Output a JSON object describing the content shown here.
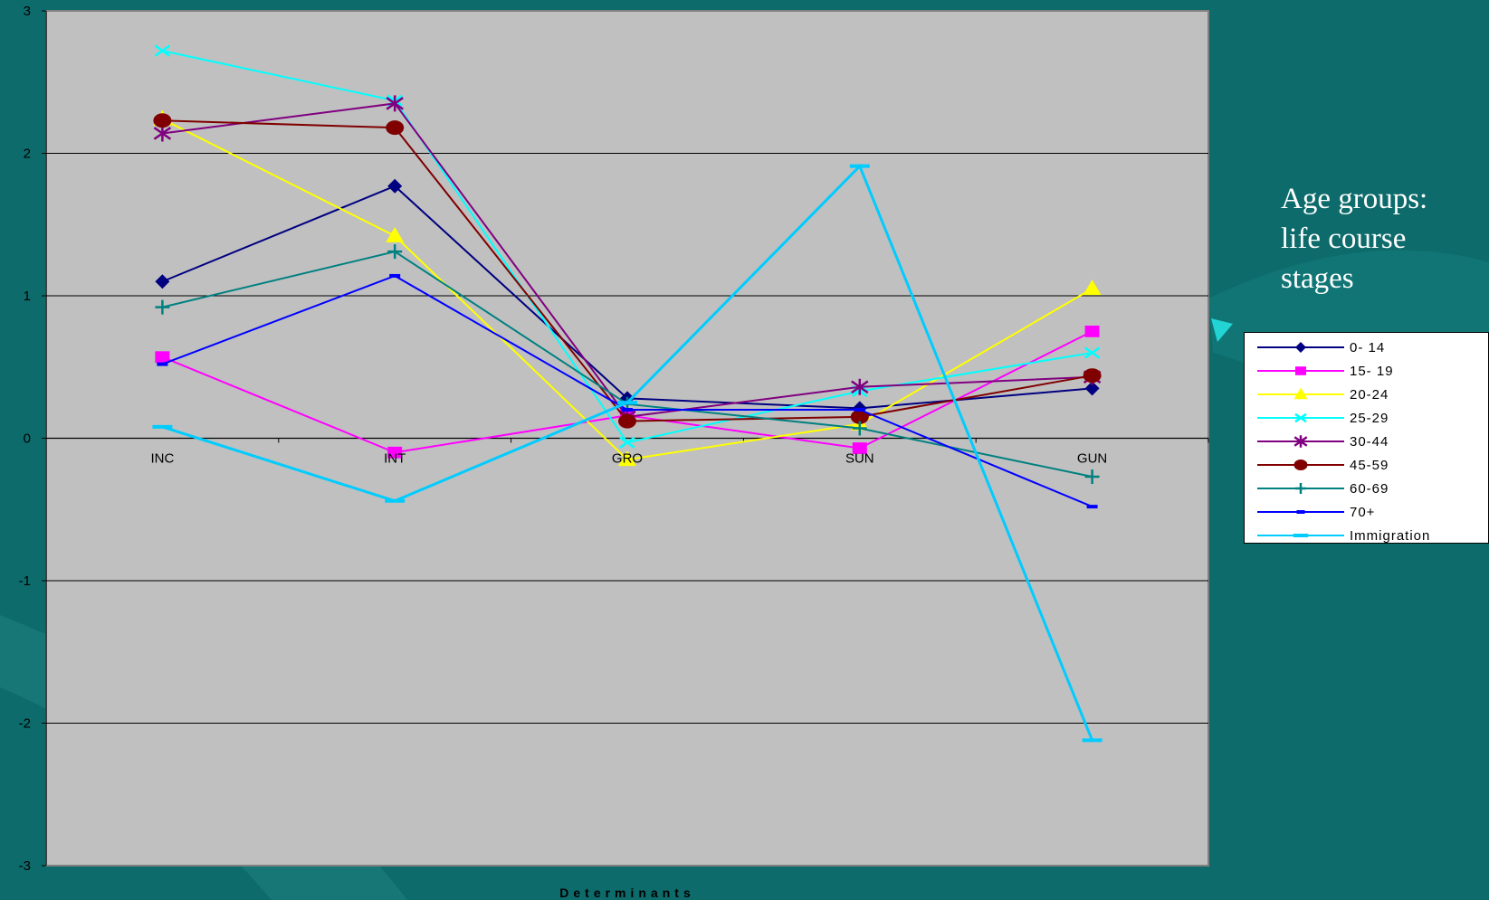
{
  "side_title": "Age groups:\nlife course\nstages",
  "colors": {
    "background": "#0d6b6b",
    "plot_area": "#c0c0c0",
    "gridline": "#000000"
  },
  "chart_data": {
    "type": "line",
    "title": "",
    "xlabel": "Determinants",
    "ylabel": "",
    "categories": [
      "INC",
      "INT",
      "GRO",
      "SUN",
      "GUN"
    ],
    "ylim": [
      -3,
      3
    ],
    "yticks": [
      -3,
      -2,
      -1,
      0,
      1,
      2,
      3
    ],
    "ytick_labels": [
      "-3",
      "-2",
      "-1",
      "0",
      "1",
      "2",
      "3"
    ],
    "grid": true,
    "legend_position": "right",
    "series": [
      {
        "name": "0- 14",
        "color": "#000080",
        "marker": "diamond",
        "values": [
          1.1,
          1.77,
          0.28,
          0.21,
          0.35
        ]
      },
      {
        "name": "15- 19",
        "color": "#ff00ff",
        "marker": "square",
        "values": [
          0.57,
          -0.1,
          0.16,
          -0.07,
          0.75
        ]
      },
      {
        "name": "20-24",
        "color": "#ffff00",
        "marker": "triangle",
        "values": [
          2.24,
          1.42,
          -0.15,
          0.1,
          1.05
        ]
      },
      {
        "name": "25-29",
        "color": "#00ffff",
        "marker": "x",
        "values": [
          2.72,
          2.37,
          -0.03,
          0.33,
          0.6
        ]
      },
      {
        "name": "30-44",
        "color": "#800080",
        "marker": "asterisk",
        "values": [
          2.14,
          2.35,
          0.15,
          0.36,
          0.43
        ]
      },
      {
        "name": "45-59",
        "color": "#800000",
        "marker": "circle",
        "values": [
          2.23,
          2.18,
          0.12,
          0.15,
          0.44
        ]
      },
      {
        "name": "60-69",
        "color": "#008080",
        "marker": "plus",
        "values": [
          0.92,
          1.31,
          0.24,
          0.07,
          -0.27
        ]
      },
      {
        "name": "70+",
        "color": "#0000ff",
        "marker": "dash",
        "values": [
          0.52,
          1.14,
          0.2,
          0.2,
          -0.48
        ]
      },
      {
        "name": "Immigration",
        "color": "#00ccff",
        "marker": "longdash",
        "values": [
          0.08,
          -0.44,
          0.25,
          1.91,
          -2.12
        ]
      }
    ]
  }
}
